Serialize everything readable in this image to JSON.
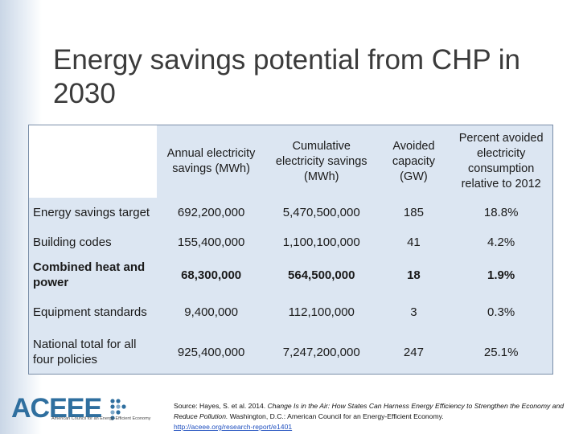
{
  "title": "Energy savings potential from CHP in 2030",
  "table": {
    "headers": [
      "",
      "Annual electricity savings (MWh)",
      "Cumulative electricity savings (MWh)",
      "Avoided capacity (GW)",
      "Percent avoided electricity consumption relative to 2012"
    ],
    "rows": [
      {
        "label": "Energy savings target",
        "values": [
          "692,200,000",
          "5,470,500,000",
          "185",
          "18.8%"
        ]
      },
      {
        "label": "Building codes",
        "values": [
          "155,400,000",
          "1,100,100,000",
          "41",
          "4.2%"
        ]
      },
      {
        "label": "Combined heat and power",
        "values": [
          "68,300,000",
          "564,500,000",
          "18",
          "1.9%"
        ]
      },
      {
        "label": "Equipment standards",
        "values": [
          "9,400,000",
          "112,100,000",
          "3",
          "0.3%"
        ]
      },
      {
        "label": "National total for all four policies",
        "values": [
          "925,400,000",
          "7,247,200,000",
          "247",
          "25.1%"
        ]
      }
    ]
  },
  "source": {
    "prefix": "Source: Hayes, S. et al. 2014. ",
    "title_italic": "Change Is in the Air: How States Can Harness Energy Efficiency to Strengthen the Economy and Reduce Pollution.",
    "suffix": " Washington, D.C.: American Council for an Energy-Efficient Economy.",
    "link": "http://aceee.org/research-report/e1401"
  },
  "logo": {
    "name": "ACEEE",
    "tagline": "American Council for an Energy-Efficient Economy"
  },
  "colors": {
    "table_bg": "#dce6f2",
    "logo_blue": "#2f6f9f",
    "link_blue": "#1f4fbf"
  }
}
